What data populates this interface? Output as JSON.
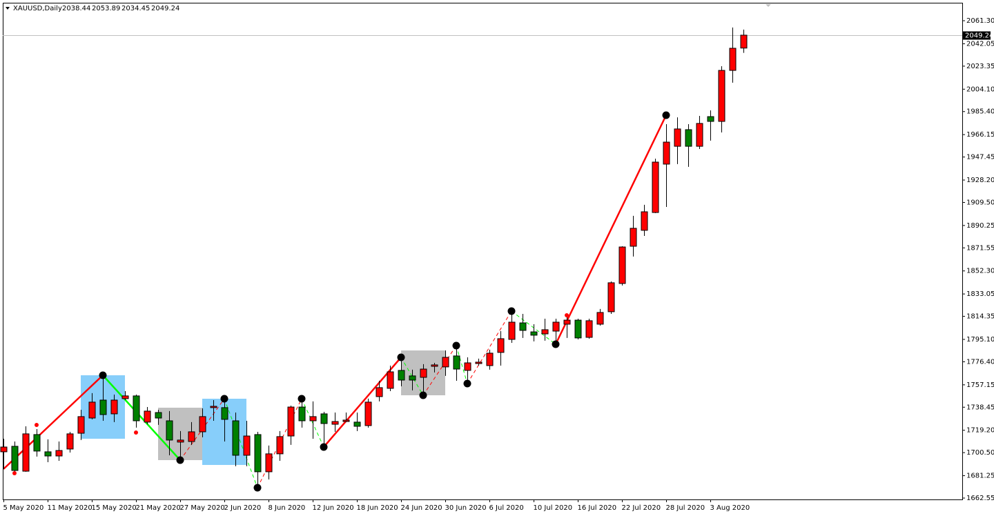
{
  "chart_data": {
    "type": "candlestick",
    "title": "XAUUSD,Daily",
    "categories": [
      "5 May 2020",
      null,
      null,
      null,
      "11 May 2020",
      null,
      null,
      null,
      "15 May 2020",
      null,
      null,
      null,
      "21 May 2020",
      null,
      null,
      null,
      "27 May 2020",
      null,
      null,
      null,
      "2 Jun 2020",
      null,
      null,
      null,
      "8 Jun 2020",
      null,
      null,
      null,
      "12 Jun 2020",
      null,
      null,
      null,
      "18 Jun 2020",
      null,
      null,
      null,
      "24 Jun 2020",
      null,
      null,
      null,
      "30 Jun 2020",
      null,
      null,
      null,
      "6 Jul 2020",
      null,
      null,
      null,
      "10 Jul 2020",
      null,
      null,
      null,
      "16 Jul 2020",
      null,
      null,
      null,
      "22 Jul 2020",
      null,
      null,
      null,
      "28 Jul 2020",
      null,
      null,
      null,
      "3 Aug 2020",
      null,
      null,
      null
    ],
    "open": [
      1701.2,
      1705.8,
      1685.0,
      1715.6,
      1701.2,
      1697.7,
      1703.5,
      1716.7,
      1729.4,
      1744.4,
      1732.9,
      1745.6,
      1747.9,
      1726.0,
      1734.0,
      1727.1,
      1709.3,
      1709.8,
      1717.9,
      1738.1,
      1738.1,
      1727.1,
      1698.3,
      1715.6,
      1684.5,
      1699.5,
      1714.4,
      1738.6,
      1727.1,
      1732.9,
      1724.2,
      1726.5,
      1726.0,
      1723.1,
      1747.3,
      1754.2,
      1769.2,
      1764.6,
      1763.4,
      1772.6,
      1772.1,
      1781.3,
      1769.2,
      1774.9,
      1773.2,
      1784.2,
      1795.1,
      1808.9,
      1801.4,
      1799.7,
      1802.0,
      1807.8,
      1811.2,
      1796.8,
      1807.8,
      1818.2,
      1841.8,
      1872.9,
      1886.2,
      1901.1,
      1941.5,
      1956.4,
      1970.3,
      1956.4,
      1981.2,
      1977.2,
      2019.8,
      2038.44
    ],
    "high": [
      1712.1,
      1709.8,
      1722.5,
      1720.2,
      1711.6,
      1709.8,
      1717.9,
      1736.3,
      1750.2,
      1764.6,
      1749.0,
      1751.9,
      1749.0,
      1738.6,
      1736.3,
      1735.2,
      1718.5,
      1726.0,
      1737.5,
      1744.4,
      1744.4,
      1734.0,
      1727.1,
      1717.9,
      1706.4,
      1718.5,
      1739.8,
      1745.6,
      1743.3,
      1734.6,
      1734.0,
      1734.0,
      1734.0,
      1745.6,
      1760.5,
      1773.2,
      1779.0,
      1769.8,
      1774.4,
      1775.5,
      1785.9,
      1790.5,
      1780.1,
      1779.0,
      1786.5,
      1802.0,
      1818.2,
      1816.4,
      1807.8,
      1812.4,
      1812.4,
      1816.4,
      1812.4,
      1812.4,
      1820.5,
      1843.5,
      1872.9,
      1898.3,
      1907.5,
      1946.1,
      1974.9,
      1980.6,
      1974.9,
      1981.8,
      1986.4,
      2023.3,
      2055.6,
      2053.89
    ],
    "low": [
      1686.8,
      1684.5,
      1684.5,
      1697.2,
      1692.5,
      1693.7,
      1700.6,
      1711.0,
      1728.3,
      1727.1,
      1726.0,
      1744.4,
      1721.4,
      1724.2,
      1723.7,
      1698.3,
      1693.7,
      1707.0,
      1713.3,
      1727.1,
      1709.8,
      1689.1,
      1689.1,
      1670.7,
      1678.1,
      1693.7,
      1707.0,
      1721.4,
      1712.1,
      1705.2,
      1717.9,
      1726.0,
      1718.5,
      1721.4,
      1743.3,
      1751.9,
      1755.9,
      1752.5,
      1747.3,
      1767.5,
      1764.6,
      1760.5,
      1757.7,
      1773.2,
      1769.8,
      1773.2,
      1792.2,
      1796.3,
      1793.4,
      1794.0,
      1791.7,
      1796.3,
      1795.1,
      1795.7,
      1806.6,
      1816.4,
      1840.1,
      1864.3,
      1881.5,
      1900.6,
      1905.7,
      1941.5,
      1939.2,
      1954.1,
      1961.1,
      1968.0,
      2009.5,
      2034.45
    ],
    "close": [
      1705.2,
      1685.6,
      1716.2,
      1701.8,
      1697.7,
      1702.3,
      1716.2,
      1730.6,
      1742.7,
      1732.3,
      1744.4,
      1747.9,
      1727.1,
      1735.2,
      1729.4,
      1711.0,
      1711.0,
      1717.9,
      1730.6,
      1739.2,
      1728.3,
      1698.3,
      1714.4,
      1684.5,
      1699.5,
      1713.9,
      1738.6,
      1727.1,
      1730.6,
      1724.8,
      1726.5,
      1727.7,
      1722.5,
      1742.7,
      1754.8,
      1768.0,
      1761.1,
      1761.1,
      1770.3,
      1773.8,
      1780.1,
      1770.3,
      1775.5,
      1776.1,
      1783.6,
      1795.7,
      1809.5,
      1802.6,
      1798.6,
      1803.2,
      1809.5,
      1811.2,
      1796.3,
      1810.7,
      1817.6,
      1842.4,
      1872.3,
      1887.9,
      1901.7,
      1943.2,
      1959.9,
      1970.9,
      1956.4,
      1975.5,
      1977.2,
      2019.8,
      2038.3,
      2049.24
    ],
    "up_color": "#ff0000",
    "down_color": "#008000",
    "ylim": [
      1661.4,
      2076.3
    ],
    "yticks": [
      1662.55,
      1681.25,
      {
        "value": 1700.5,
        "label": "1700.50"
      },
      {
        "value": 1719.2,
        "label": "1719.20"
      },
      1738.45,
      1757.15,
      {
        "value": 1776.4,
        "label": "1776.40"
      },
      {
        "value": 1795.1,
        "label": "1795.10"
      },
      1814.35,
      1833.05,
      {
        "value": 1852.3,
        "label": "1852.30"
      },
      1871.55,
      1890.25,
      {
        "value": 1909.5,
        "label": "1909.50"
      },
      {
        "value": 1928.2,
        "label": "1928.20"
      },
      1947.45,
      1966.15,
      {
        "value": 1985.4,
        "label": "1985.40"
      },
      {
        "value": 2004.1,
        "label": "2004.10"
      },
      2023.35,
      2042.05,
      {
        "value": 2061.3,
        "label": "2061.30"
      }
    ],
    "grid": false
  }
}
